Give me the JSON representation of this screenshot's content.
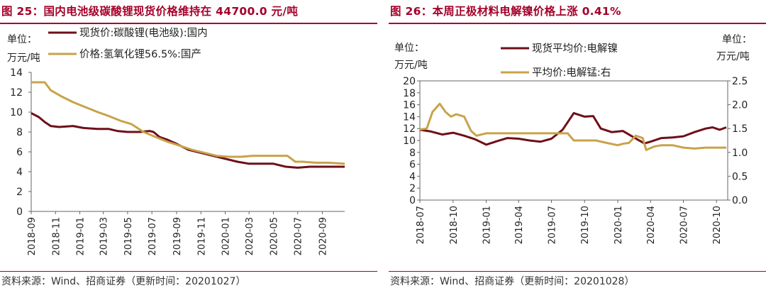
{
  "left": {
    "title": "图 25：国内电池级碳酸锂现货价格维持在 44700.0 元/吨",
    "source": "资料来源：Wind、招商证券（更新时间：20201027）",
    "unit_line1": "单位：",
    "unit_line2": "万元/吨"
  },
  "right": {
    "title": "图 26：本周正极材料电解镍价格上涨 0.41%",
    "source": "资料来源：Wind、招商证券（更新时间：20201028）",
    "unit_left_line1": "单位：",
    "unit_left_line2": "万元/吨",
    "unit_right_line1": "单位：",
    "unit_right_line2": "万元/吨"
  },
  "chart_data": [
    {
      "type": "line",
      "ylim": [
        0,
        14
      ],
      "yticks": [
        "0",
        "2",
        "4",
        "6",
        "8",
        "10",
        "12",
        "14"
      ],
      "xlim": [
        "2018-09",
        "2020-10-27"
      ],
      "xticks": [
        "2018-09",
        "2018-11",
        "2019-01",
        "2019-03",
        "2019-05",
        "2019-07",
        "2019-09",
        "2019-11",
        "2020-01",
        "2020-03",
        "2020-05",
        "2020-07",
        "2020-09"
      ],
      "series": [
        {
          "name": "现货价:碳酸锂(电池级):国内",
          "color": "#6e0f1a",
          "points": [
            [
              "2018-09-01",
              9.9
            ],
            [
              "2018-09-20",
              9.5
            ],
            [
              "2018-10-05",
              9.0
            ],
            [
              "2018-10-20",
              8.6
            ],
            [
              "2018-11-10",
              8.5
            ],
            [
              "2018-12-15",
              8.6
            ],
            [
              "2019-01-10",
              8.4
            ],
            [
              "2019-02-15",
              8.3
            ],
            [
              "2019-03-15",
              8.3
            ],
            [
              "2019-04-05",
              8.1
            ],
            [
              "2019-05-01",
              8.0
            ],
            [
              "2019-06-01",
              8.0
            ],
            [
              "2019-06-25",
              8.1
            ],
            [
              "2019-07-05",
              8.0
            ],
            [
              "2019-07-20",
              7.5
            ],
            [
              "2019-08-10",
              7.2
            ],
            [
              "2019-09-01",
              6.8
            ],
            [
              "2019-10-01",
              6.2
            ],
            [
              "2019-11-01",
              5.9
            ],
            [
              "2019-12-01",
              5.6
            ],
            [
              "2020-01-01",
              5.3
            ],
            [
              "2020-02-01",
              5.0
            ],
            [
              "2020-03-01",
              4.8
            ],
            [
              "2020-04-01",
              4.8
            ],
            [
              "2020-05-01",
              4.8
            ],
            [
              "2020-06-01",
              4.5
            ],
            [
              "2020-07-01",
              4.4
            ],
            [
              "2020-08-01",
              4.5
            ],
            [
              "2020-09-01",
              4.5
            ],
            [
              "2020-10-27",
              4.5
            ]
          ]
        },
        {
          "name": "价格:氢氧化锂56.5%:国产",
          "color": "#c8a34a",
          "points": [
            [
              "2018-09-01",
              13.0
            ],
            [
              "2018-10-05",
              13.0
            ],
            [
              "2018-10-20",
              12.2
            ],
            [
              "2018-11-15",
              11.6
            ],
            [
              "2018-12-15",
              11.0
            ],
            [
              "2019-01-15",
              10.5
            ],
            [
              "2019-02-15",
              10.0
            ],
            [
              "2019-03-15",
              9.6
            ],
            [
              "2019-04-15",
              9.1
            ],
            [
              "2019-05-10",
              8.8
            ],
            [
              "2019-06-10",
              8.0
            ],
            [
              "2019-07-10",
              7.5
            ],
            [
              "2019-08-10",
              7.0
            ],
            [
              "2019-09-10",
              6.6
            ],
            [
              "2019-10-10",
              6.2
            ],
            [
              "2019-11-10",
              5.9
            ],
            [
              "2019-12-10",
              5.6
            ],
            [
              "2020-01-10",
              5.5
            ],
            [
              "2020-02-10",
              5.5
            ],
            [
              "2020-03-10",
              5.6
            ],
            [
              "2020-04-10",
              5.6
            ],
            [
              "2020-05-10",
              5.6
            ],
            [
              "2020-06-05",
              5.6
            ],
            [
              "2020-06-25",
              5.0
            ],
            [
              "2020-07-15",
              5.0
            ],
            [
              "2020-08-15",
              4.9
            ],
            [
              "2020-09-15",
              4.9
            ],
            [
              "2020-10-27",
              4.8
            ]
          ]
        }
      ]
    },
    {
      "type": "line",
      "ylim": [
        0,
        20
      ],
      "yticks": [
        "0",
        "2",
        "4",
        "6",
        "8",
        "10",
        "12",
        "14",
        "16",
        "18",
        "20"
      ],
      "y2lim": [
        0,
        2.5
      ],
      "y2ticks": [
        "0.0",
        "0.5",
        "1.0",
        "1.5",
        "2.0",
        "2.5"
      ],
      "xlim": [
        "2018-07",
        "2020-11"
      ],
      "xticks": [
        "2018-07",
        "2018-10",
        "2019-01",
        "2019-04",
        "2019-07",
        "2019-10",
        "2020-01",
        "2020-04",
        "2020-07",
        "2020-10"
      ],
      "series": [
        {
          "name": "现货平均价:电解镍",
          "axis": "left",
          "color": "#6e0f1a",
          "points": [
            [
              "2018-07-01",
              11.8
            ],
            [
              "2018-08-01",
              11.5
            ],
            [
              "2018-09-01",
              11.0
            ],
            [
              "2018-10-01",
              11.3
            ],
            [
              "2018-11-01",
              10.8
            ],
            [
              "2018-12-01",
              10.2
            ],
            [
              "2019-01-01",
              9.3
            ],
            [
              "2019-02-01",
              9.9
            ],
            [
              "2019-03-01",
              10.4
            ],
            [
              "2019-04-01",
              10.3
            ],
            [
              "2019-05-01",
              10.0
            ],
            [
              "2019-06-01",
              9.8
            ],
            [
              "2019-07-01",
              10.3
            ],
            [
              "2019-08-01",
              11.8
            ],
            [
              "2019-09-01",
              14.6
            ],
            [
              "2019-10-01",
              14.0
            ],
            [
              "2019-10-25",
              14.1
            ],
            [
              "2019-11-15",
              12.0
            ],
            [
              "2019-12-15",
              11.4
            ],
            [
              "2020-01-15",
              11.6
            ],
            [
              "2020-02-15",
              10.5
            ],
            [
              "2020-03-15",
              9.5
            ],
            [
              "2020-04-01",
              9.8
            ],
            [
              "2020-05-01",
              10.4
            ],
            [
              "2020-06-01",
              10.5
            ],
            [
              "2020-07-01",
              10.7
            ],
            [
              "2020-08-01",
              11.4
            ],
            [
              "2020-09-01",
              12.0
            ],
            [
              "2020-09-20",
              12.2
            ],
            [
              "2020-10-10",
              11.8
            ],
            [
              "2020-10-28",
              12.2
            ]
          ]
        },
        {
          "name": "平均价:电解锰:右",
          "axis": "right",
          "color": "#c8a34a",
          "points": [
            [
              "2018-07-01",
              1.48
            ],
            [
              "2018-07-20",
              1.5
            ],
            [
              "2018-08-05",
              1.85
            ],
            [
              "2018-08-25",
              2.02
            ],
            [
              "2018-09-10",
              1.85
            ],
            [
              "2018-09-25",
              1.75
            ],
            [
              "2018-10-10",
              1.8
            ],
            [
              "2018-11-01",
              1.75
            ],
            [
              "2018-11-20",
              1.45
            ],
            [
              "2018-12-05",
              1.35
            ],
            [
              "2019-01-01",
              1.4
            ],
            [
              "2019-03-01",
              1.4
            ],
            [
              "2019-05-01",
              1.4
            ],
            [
              "2019-07-01",
              1.4
            ],
            [
              "2019-08-15",
              1.4
            ],
            [
              "2019-09-01",
              1.25
            ],
            [
              "2019-10-01",
              1.25
            ],
            [
              "2019-11-01",
              1.25
            ],
            [
              "2019-12-01",
              1.2
            ],
            [
              "2020-01-01",
              1.15
            ],
            [
              "2020-01-15",
              1.18
            ],
            [
              "2020-02-01",
              1.2
            ],
            [
              "2020-02-20",
              1.35
            ],
            [
              "2020-03-10",
              1.3
            ],
            [
              "2020-03-20",
              1.05
            ],
            [
              "2020-04-10",
              1.12
            ],
            [
              "2020-05-01",
              1.15
            ],
            [
              "2020-06-01",
              1.15
            ],
            [
              "2020-07-01",
              1.1
            ],
            [
              "2020-08-01",
              1.08
            ],
            [
              "2020-09-01",
              1.1
            ],
            [
              "2020-10-28",
              1.1
            ]
          ]
        }
      ]
    }
  ]
}
